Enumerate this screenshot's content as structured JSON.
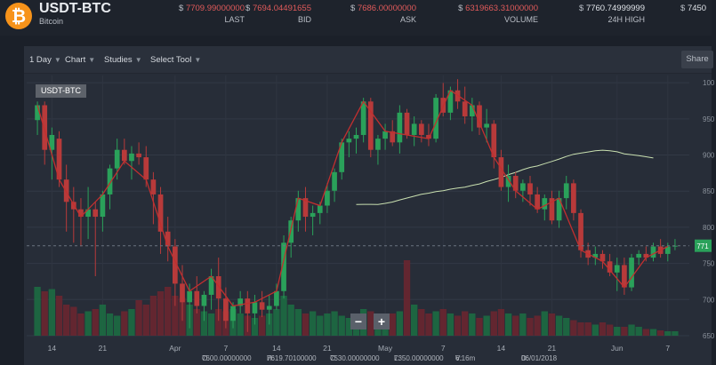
{
  "header": {
    "logo_glyph": "₿",
    "pair": "USDT-BTC",
    "coin": "Bitcoin",
    "stats": [
      {
        "currency": "$",
        "value": "7709.99000000",
        "label": "LAST"
      },
      {
        "currency": "$",
        "value": "7694.04491655",
        "label": "BID"
      },
      {
        "currency": "$",
        "value": "7686.00000000",
        "label": "ASK"
      },
      {
        "currency": "$",
        "value": "6319663.31000000",
        "label": "VOLUME"
      },
      {
        "currency": "$",
        "value": "7760.74999999",
        "label": "24H HIGH"
      },
      {
        "currency": "$",
        "value": "7450",
        "label": ""
      }
    ]
  },
  "toolbar": {
    "interval": "1 Day",
    "chart": "Chart",
    "studies": "Studies",
    "select_tool": "Select Tool",
    "share": "Share"
  },
  "zoom": {
    "minus": "−",
    "plus": "+"
  },
  "ohlc": {
    "o_label": "O:",
    "o": "7500.00000000",
    "h_label": "H:",
    "h": "7619.70100000",
    "c_label": "C:",
    "c": "7530.00000000",
    "l_label": "L:",
    "l": "7350.00000000",
    "v_label": "V:",
    "v": "6.16m",
    "d_label": "D:",
    "d": "06/01/2018"
  },
  "colors": {
    "up": "#2aa15a",
    "down": "#b83a3a",
    "ma": "#c9e0b0",
    "trend": "#c22f2f",
    "last": "#2aa15a"
  },
  "chart_data": {
    "type": "candlestick",
    "symbol": "USDT-BTC",
    "x_tick_labels": [
      "14",
      "21",
      "Apr",
      "7",
      "14",
      "21",
      "May",
      "7",
      "14",
      "21",
      "Jun",
      "7"
    ],
    "y_tick_labels": [
      "650",
      "700",
      "750",
      "800",
      "850",
      "900",
      "950",
      "100"
    ],
    "last_price_label": "771",
    "ylim": [
      6500,
      10000
    ],
    "candles": [
      [
        9400,
        9650,
        9200,
        9600
      ],
      [
        9600,
        9650,
        8800,
        9000
      ],
      [
        9000,
        9300,
        8600,
        9200
      ],
      [
        9150,
        9250,
        8500,
        8600
      ],
      [
        8600,
        8800,
        7900,
        8300
      ],
      [
        8300,
        8500,
        7750,
        8200
      ],
      [
        8200,
        8350,
        7700,
        8100
      ],
      [
        8100,
        8500,
        7800,
        8200
      ],
      [
        8200,
        8300,
        7300,
        8100
      ],
      [
        8100,
        8450,
        7900,
        8400
      ],
      [
        8400,
        8800,
        8200,
        8750
      ],
      [
        8750,
        9150,
        8600,
        9000
      ],
      [
        9000,
        9150,
        8800,
        8850
      ],
      [
        8850,
        9050,
        8600,
        8950
      ],
      [
        8950,
        9100,
        8800,
        8900
      ],
      [
        8900,
        9050,
        8500,
        8600
      ],
      [
        8600,
        8700,
        8000,
        8400
      ],
      [
        8400,
        8500,
        7600,
        7900
      ],
      [
        7900,
        8100,
        7500,
        7700
      ],
      [
        7700,
        7800,
        6900,
        7200
      ],
      [
        7200,
        7450,
        6700,
        6950
      ],
      [
        6950,
        7200,
        6600,
        7100
      ],
      [
        7100,
        7300,
        6800,
        6900
      ],
      [
        6900,
        7100,
        6700,
        7050
      ],
      [
        7050,
        7400,
        6850,
        7300
      ],
      [
        7300,
        7550,
        6700,
        7000
      ],
      [
        7000,
        7150,
        6600,
        6700
      ],
      [
        6700,
        6950,
        6600,
        6900
      ],
      [
        6900,
        7100,
        6800,
        7000
      ],
      [
        7000,
        7100,
        6550,
        6800
      ],
      [
        6800,
        7050,
        6650,
        6950
      ],
      [
        6950,
        7100,
        6750,
        6850
      ],
      [
        6850,
        7050,
        6650,
        6900
      ],
      [
        6900,
        7200,
        6850,
        7100
      ],
      [
        7100,
        7850,
        7000,
        7750
      ],
      [
        7750,
        8100,
        7550,
        8050
      ],
      [
        8050,
        8450,
        7900,
        8350
      ],
      [
        8350,
        8500,
        7900,
        8100
      ],
      [
        8100,
        8250,
        7850,
        8150
      ],
      [
        8150,
        8300,
        8000,
        8250
      ],
      [
        8250,
        8550,
        8150,
        8450
      ],
      [
        8450,
        8750,
        8300,
        8700
      ],
      [
        8700,
        9150,
        8600,
        9100
      ],
      [
        9100,
        9250,
        8900,
        9150
      ],
      [
        9150,
        9300,
        8950,
        9200
      ],
      [
        9200,
        9700,
        9100,
        9650
      ],
      [
        9650,
        9700,
        8900,
        9000
      ],
      [
        9000,
        9200,
        8800,
        9150
      ],
      [
        9150,
        9350,
        9000,
        9250
      ],
      [
        9250,
        9400,
        9050,
        9100
      ],
      [
        9100,
        9600,
        8950,
        9500
      ],
      [
        9500,
        9550,
        9150,
        9200
      ],
      [
        9200,
        9450,
        9050,
        9350
      ],
      [
        9350,
        9400,
        9100,
        9200
      ],
      [
        9200,
        9350,
        9050,
        9150
      ],
      [
        9150,
        9750,
        9100,
        9700
      ],
      [
        9700,
        9900,
        9450,
        9500
      ],
      [
        9500,
        9850,
        9400,
        9800
      ],
      [
        9800,
        9950,
        9550,
        9650
      ],
      [
        9650,
        9850,
        9350,
        9450
      ],
      [
        9450,
        9700,
        9250,
        9600
      ],
      [
        9600,
        9650,
        9200,
        9300
      ],
      [
        9300,
        9550,
        9100,
        9350
      ],
      [
        9350,
        9400,
        8750,
        8900
      ],
      [
        8900,
        9000,
        8450,
        8500
      ],
      [
        8500,
        8800,
        8300,
        8650
      ],
      [
        8650,
        8700,
        8350,
        8450
      ],
      [
        8450,
        8600,
        8300,
        8550
      ],
      [
        8550,
        8650,
        8250,
        8400
      ],
      [
        8400,
        8500,
        8150,
        8200
      ],
      [
        8200,
        8400,
        8050,
        8350
      ],
      [
        8350,
        8450,
        8000,
        8050
      ],
      [
        8050,
        8450,
        7950,
        8350
      ],
      [
        8350,
        8650,
        8200,
        8550
      ],
      [
        8550,
        8600,
        8050,
        8150
      ],
      [
        8150,
        8200,
        7550,
        7650
      ],
      [
        7650,
        7750,
        7450,
        7550
      ],
      [
        7550,
        7700,
        7450,
        7600
      ],
      [
        7600,
        7650,
        7400,
        7500
      ],
      [
        7500,
        7600,
        7300,
        7350
      ],
      [
        7350,
        7550,
        7100,
        7450
      ],
      [
        7450,
        7550,
        7050,
        7150
      ],
      [
        7150,
        7600,
        7100,
        7550
      ],
      [
        7550,
        7650,
        7450,
        7600
      ],
      [
        7600,
        7700,
        7500,
        7550
      ],
      [
        7550,
        7750,
        7500,
        7700
      ],
      [
        7700,
        7800,
        7550,
        7600
      ],
      [
        7600,
        7750,
        7500,
        7700
      ],
      [
        7700,
        7800,
        7650,
        7710
      ]
    ],
    "volume": [
      1.1,
      1.0,
      1.05,
      0.9,
      0.7,
      0.65,
      0.5,
      0.55,
      0.6,
      0.7,
      0.5,
      0.45,
      0.55,
      0.6,
      0.8,
      0.7,
      0.9,
      1.0,
      1.1,
      0.9,
      0.85,
      0.7,
      0.6,
      0.55,
      0.5,
      0.6,
      0.55,
      0.6,
      0.5,
      0.45,
      0.4,
      0.45,
      0.5,
      0.6,
      0.9,
      0.7,
      0.6,
      0.5,
      0.55,
      0.45,
      0.5,
      0.55,
      0.45,
      0.4,
      0.5,
      0.6,
      0.55,
      0.5,
      0.45,
      0.5,
      0.55,
      1.7,
      0.7,
      0.6,
      0.5,
      0.55,
      0.6,
      0.5,
      0.45,
      0.55,
      0.5,
      0.4,
      0.45,
      0.55,
      0.6,
      0.5,
      0.45,
      0.5,
      0.4,
      0.45,
      0.55,
      0.5,
      0.45,
      0.4,
      0.35,
      0.3,
      0.3,
      0.25,
      0.3,
      0.25,
      0.2,
      0.2,
      0.25,
      0.2,
      0.15,
      0.15,
      0.12,
      0.1,
      0.1
    ]
  }
}
